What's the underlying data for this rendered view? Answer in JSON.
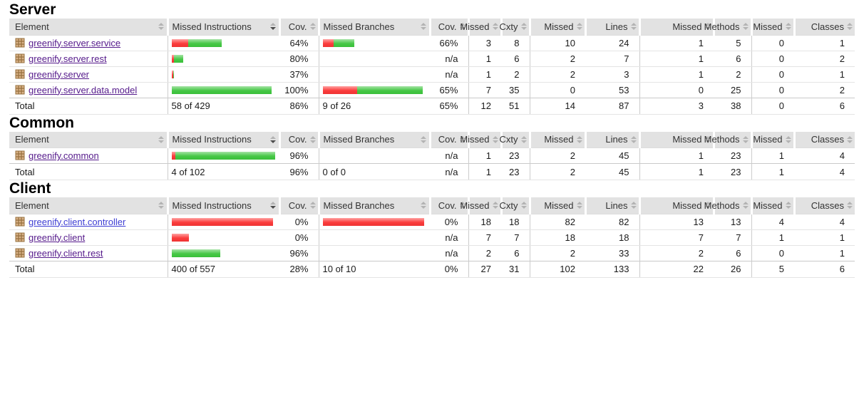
{
  "columns": [
    "Element",
    "Missed Instructions",
    "Cov.",
    "Missed Branches",
    "Cov.",
    "Missed",
    "Cxty",
    "Missed",
    "Lines",
    "Missed",
    "Methods",
    "Missed",
    "Classes"
  ],
  "colors": {
    "bar_red": "#ee3434",
    "bar_green": "#3abf3a",
    "header_bg": "#e2e2e2",
    "link_visited": "#551a8b",
    "link_unvisited": "#3d3dd3"
  },
  "sort_state": {
    "sorted_column": "Missed Instructions",
    "direction": "descending"
  },
  "sections": [
    {
      "title": "Server",
      "rows": [
        {
          "name": "greenify.server.service",
          "instr_bar": {
            "red": 23,
            "green": 47
          },
          "instr_cov": "64%",
          "branch_bar": {
            "red": 15,
            "green": 29
          },
          "branch_cov": "66%",
          "missed": "3",
          "cxty": "8",
          "missed_lines": "10",
          "lines": "24",
          "missed_methods": "1",
          "methods": "5",
          "missed_classes": "0",
          "classes": "1"
        },
        {
          "name": "greenify.server.rest",
          "instr_bar": {
            "red": 3,
            "green": 13
          },
          "instr_cov": "80%",
          "branch_bar": {
            "red": 0,
            "green": 0
          },
          "branch_cov": "n/a",
          "missed": "1",
          "cxty": "6",
          "missed_lines": "2",
          "lines": "7",
          "missed_methods": "1",
          "methods": "6",
          "missed_classes": "0",
          "classes": "2"
        },
        {
          "name": "greenify.server",
          "instr_bar": {
            "red": 2,
            "green": 1
          },
          "instr_cov": "37%",
          "branch_bar": {
            "red": 0,
            "green": 0
          },
          "branch_cov": "n/a",
          "missed": "1",
          "cxty": "2",
          "missed_lines": "2",
          "lines": "3",
          "missed_methods": "1",
          "methods": "2",
          "missed_classes": "0",
          "classes": "1"
        },
        {
          "name": "greenify.server.data.model",
          "instr_bar": {
            "red": 0,
            "green": 140
          },
          "instr_cov": "100%",
          "branch_bar": {
            "red": 48,
            "green": 92
          },
          "branch_cov": "65%",
          "missed": "7",
          "cxty": "35",
          "missed_lines": "0",
          "lines": "53",
          "missed_methods": "0",
          "methods": "25",
          "missed_classes": "0",
          "classes": "2"
        }
      ],
      "total": {
        "label": "Total",
        "instr": "58 of 429",
        "instr_cov": "86%",
        "branch": "9 of 26",
        "branch_cov": "65%",
        "missed": "12",
        "cxty": "51",
        "missed_lines": "14",
        "lines": "87",
        "missed_methods": "3",
        "methods": "38",
        "missed_classes": "0",
        "classes": "6"
      }
    },
    {
      "title": "Common",
      "rows": [
        {
          "name": "greenify.common",
          "instr_bar": {
            "red": 5,
            "green": 140
          },
          "instr_cov": "96%",
          "branch_bar": {
            "red": 0,
            "green": 0
          },
          "branch_cov": "n/a",
          "missed": "1",
          "cxty": "23",
          "missed_lines": "2",
          "lines": "45",
          "missed_methods": "1",
          "methods": "23",
          "missed_classes": "1",
          "classes": "4"
        }
      ],
      "total": {
        "label": "Total",
        "instr": "4 of 102",
        "instr_cov": "96%",
        "branch": "0 of 0",
        "branch_cov": "n/a",
        "missed": "1",
        "cxty": "23",
        "missed_lines": "2",
        "lines": "45",
        "missed_methods": "1",
        "methods": "23",
        "missed_classes": "1",
        "classes": "4"
      }
    },
    {
      "title": "Client",
      "rows": [
        {
          "name": "greenify.client.controller",
          "instr_bar": {
            "red": 142,
            "green": 0
          },
          "instr_cov": "0%",
          "branch_bar": {
            "red": 142,
            "green": 0
          },
          "branch_cov": "0%",
          "missed": "18",
          "cxty": "18",
          "missed_lines": "82",
          "lines": "82",
          "missed_methods": "13",
          "methods": "13",
          "missed_classes": "4",
          "classes": "4"
        },
        {
          "name": "greenify.client",
          "instr_bar": {
            "red": 24,
            "green": 0
          },
          "instr_cov": "0%",
          "branch_bar": {
            "red": 0,
            "green": 0
          },
          "branch_cov": "n/a",
          "missed": "7",
          "cxty": "7",
          "missed_lines": "18",
          "lines": "18",
          "missed_methods": "7",
          "methods": "7",
          "missed_classes": "1",
          "classes": "1"
        },
        {
          "name": "greenify.client.rest",
          "instr_bar": {
            "red": 0,
            "green": 68
          },
          "instr_cov": "96%",
          "branch_bar": {
            "red": 0,
            "green": 0
          },
          "branch_cov": "n/a",
          "missed": "2",
          "cxty": "6",
          "missed_lines": "2",
          "lines": "33",
          "missed_methods": "2",
          "methods": "6",
          "missed_classes": "0",
          "classes": "1"
        }
      ],
      "total": {
        "label": "Total",
        "instr": "400 of 557",
        "instr_cov": "28%",
        "branch": "10 of 10",
        "branch_cov": "0%",
        "missed": "27",
        "cxty": "31",
        "missed_lines": "102",
        "lines": "133",
        "missed_methods": "22",
        "methods": "26",
        "missed_classes": "5",
        "classes": "6"
      }
    }
  ]
}
